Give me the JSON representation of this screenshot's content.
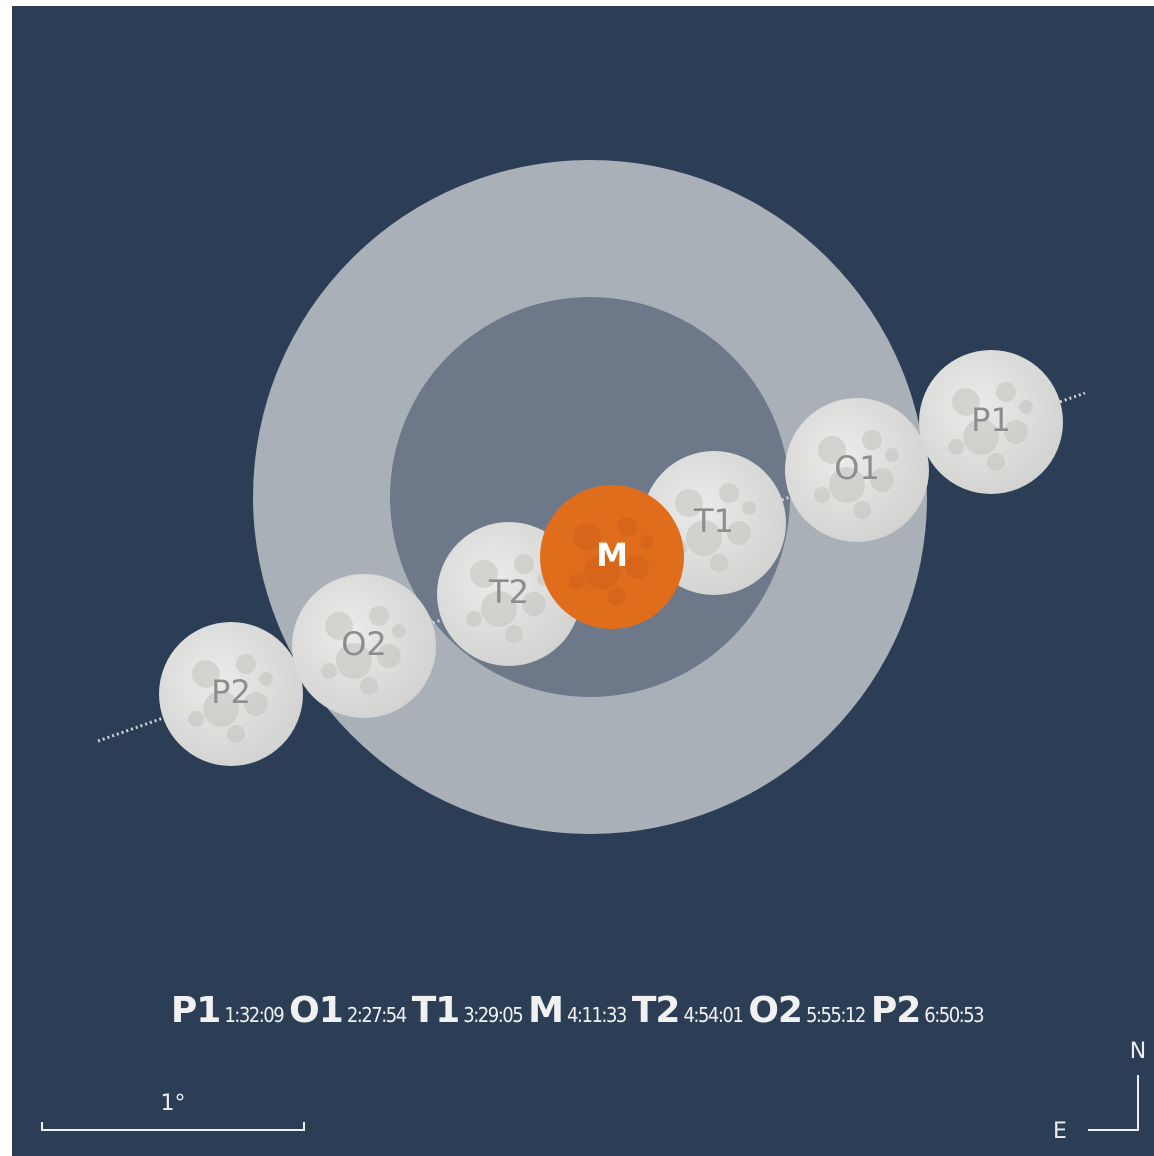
{
  "events": [
    {
      "label": "P1",
      "time": "1:32:09"
    },
    {
      "label": "O1",
      "time": "2:27:54"
    },
    {
      "label": "T1",
      "time": "3:29:05"
    },
    {
      "label": "M",
      "time": "4:11:33"
    },
    {
      "label": "T2",
      "time": "4:54:01"
    },
    {
      "label": "O2",
      "time": "5:55:12"
    },
    {
      "label": "P2",
      "time": "6:50:53"
    }
  ],
  "scale": "1°",
  "compass": {
    "north": "N",
    "east": "E"
  }
}
